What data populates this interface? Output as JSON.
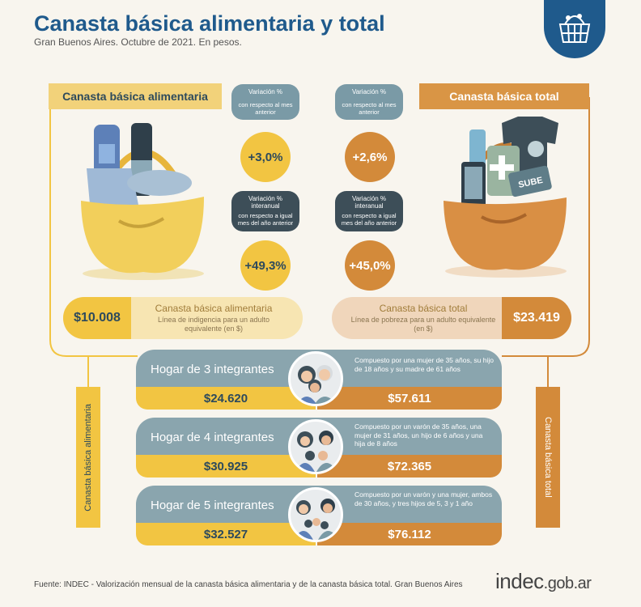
{
  "header": {
    "title": "Canasta básica alimentaria y total",
    "subtitle": "Gran Buenos Aires. Octubre de 2021. En pesos."
  },
  "left_section": {
    "label": "Canasta básica alimentaria",
    "monthly_variation": {
      "title": "Variación %",
      "subtitle": "con respecto al mes anterior",
      "value": "+3,0%"
    },
    "yearly_variation": {
      "title": "Variación % interanual",
      "subtitle": "con respecto a igual mes del año anterior",
      "value": "+49,3%"
    },
    "price": "$10.008",
    "pill_title": "Canasta básica alimentaria",
    "pill_desc": "Línea de indigencia para un adulto equivalente (en $)"
  },
  "right_section": {
    "label": "Canasta básica total",
    "monthly_variation": {
      "title": "Variación %",
      "subtitle": "con respecto al mes anterior",
      "value": "+2,6%"
    },
    "yearly_variation": {
      "title": "Variación % interanual",
      "subtitle": "con respecto a igual mes del año anterior",
      "value": "+45,0%"
    },
    "price": "$23.419",
    "pill_title": "Canasta básica total",
    "pill_desc": "Línea de pobreza para un adulto equivalente (en $)",
    "sube_label": "SUBE"
  },
  "households": [
    {
      "title": "Hogar de 3 integrantes",
      "desc": "Compuesto por una mujer de 35 años, su hijo de 18 años y su madre de 61 años",
      "cba": "$24.620",
      "cbt": "$57.611"
    },
    {
      "title": "Hogar de 4 integrantes",
      "desc": "Compuesto por un varón de 35 años, una mujer de 31 años, un hijo de 6 años y una hija de 8 años",
      "cba": "$30.925",
      "cbt": "$72.365"
    },
    {
      "title": "Hogar de 5 integrantes",
      "desc": "Compuesto por un varón y una mujer, ambos de 30 años, y tres hijos de 5, 3 y 1 año",
      "cba": "$32.527",
      "cbt": "$76.112"
    }
  ],
  "side_labels": {
    "left": "Canasta básica alimentaria",
    "right": "Canasta básica total"
  },
  "footer": {
    "source": "Fuente: INDEC - Valorización mensual de la canasta básica alimentaria y de la canasta básica total. Gran Buenos Aires",
    "brand_main": "indec",
    "brand_suffix": ".gob.ar"
  },
  "colors": {
    "blue": "#1f5a8c",
    "yellow": "#f2c542",
    "orange": "#d38a3a",
    "slate": "#8aa5ae",
    "dark_slate": "#3d4e58"
  },
  "icons": [
    "basket-logo-icon",
    "food-basket-icon",
    "total-basket-icon",
    "family-icon"
  ]
}
